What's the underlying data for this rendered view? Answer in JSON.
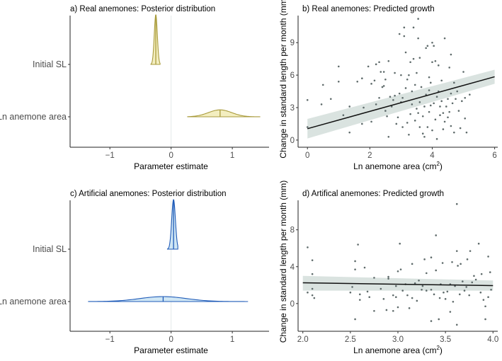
{
  "chart_data": [
    {
      "id": "a",
      "type": "density",
      "title": "a) Real anemones: Posterior distribution",
      "xlabel": "Parameter estimate",
      "xlim": [
        -1.65,
        1.6
      ],
      "xticks": [
        -1,
        0,
        1
      ],
      "xtick_labels": [
        "−1",
        "0",
        "1"
      ],
      "reference_line": 0,
      "colors": {
        "fill": "#f3eec0",
        "stroke": "#a99b3c"
      },
      "categories": [
        "Initial SL",
        "Ln anemone area"
      ],
      "series": [
        {
          "name": "Initial SL",
          "median": -0.25,
          "sd": 0.025,
          "range": [
            -0.33,
            -0.18
          ],
          "relative_height": 1.0
        },
        {
          "name": "Ln anemone area",
          "median": 0.8,
          "sd": 0.19,
          "range": [
            0.27,
            1.45
          ],
          "relative_height": 0.14
        }
      ]
    },
    {
      "id": "b",
      "type": "scatter",
      "title": "b) Real anemones: Predicted growth",
      "xlabel": "Ln anemone area (cm",
      "xlabel_sup": "2",
      "xlabel_end": ")",
      "ylabel": "Change in standard length per month (mm)",
      "xlim": [
        -0.3,
        6.1
      ],
      "ylim": [
        -0.4,
        11.5
      ],
      "xticks": [
        0,
        2,
        4,
        6
      ],
      "xtick_labels": [
        "0",
        "2",
        "4",
        "6"
      ],
      "yticks": [
        0,
        3,
        6,
        9
      ],
      "ytick_labels": [
        "0",
        "3",
        "6",
        "9"
      ],
      "colors": {
        "point": "#5f6b6b",
        "line": "#111111",
        "band": "#d3dedb"
      },
      "fit": {
        "x": [
          0,
          6
        ],
        "y": [
          1.05,
          5.85
        ],
        "lower": [
          0.15,
          5.2
        ],
        "upper": [
          1.95,
          6.5
        ]
      },
      "points": [
        [
          0,
          3.7
        ],
        [
          0,
          1.2
        ],
        [
          0.45,
          3.3
        ],
        [
          0.5,
          5.1
        ],
        [
          0.75,
          3.8
        ],
        [
          1,
          6.8
        ],
        [
          1,
          5.4
        ],
        [
          1.15,
          2.3
        ],
        [
          1.35,
          3.1
        ],
        [
          1.35,
          0.7
        ],
        [
          1.6,
          5.4
        ],
        [
          1.75,
          5.7
        ],
        [
          1.75,
          1.5
        ],
        [
          1.8,
          3
        ],
        [
          1.95,
          6.8
        ],
        [
          2.05,
          5.2
        ],
        [
          2.05,
          1.7
        ],
        [
          2.15,
          5.5
        ],
        [
          2.2,
          7
        ],
        [
          2.3,
          7.2
        ],
        [
          2.35,
          6.3
        ],
        [
          2.45,
          6.3
        ],
        [
          2.5,
          5.6
        ],
        [
          2.5,
          2.7
        ],
        [
          2.6,
          7.3
        ],
        [
          2.6,
          0.3
        ],
        [
          2.65,
          4
        ],
        [
          2.75,
          3.7
        ],
        [
          2.8,
          6.2
        ],
        [
          2.9,
          2.1
        ],
        [
          2.95,
          9.8
        ],
        [
          3,
          6
        ],
        [
          3.05,
          1.2
        ],
        [
          3.1,
          10.4
        ],
        [
          3.1,
          9.6
        ],
        [
          3.15,
          8.1
        ],
        [
          3.2,
          5.6
        ],
        [
          3.25,
          0.5
        ],
        [
          3.3,
          7.2
        ],
        [
          3.4,
          10.4
        ],
        [
          3.4,
          7.5
        ],
        [
          3.5,
          6.2
        ],
        [
          3.55,
          9.4
        ],
        [
          3.55,
          11.2
        ],
        [
          3.6,
          7.6
        ],
        [
          3.6,
          1.2
        ],
        [
          3.7,
          0.6
        ],
        [
          3.8,
          8.5
        ],
        [
          3.85,
          8.7
        ],
        [
          3.9,
          4.6
        ],
        [
          3.95,
          3.2
        ],
        [
          4,
          9
        ],
        [
          4,
          7.2
        ],
        [
          4.05,
          8.7
        ],
        [
          4.1,
          7.3
        ],
        [
          4.2,
          6.9
        ],
        [
          4.25,
          2.3
        ],
        [
          4.4,
          9.4
        ],
        [
          4.5,
          3.8
        ],
        [
          4.55,
          6.7
        ],
        [
          4.6,
          7.9
        ],
        [
          4.7,
          5.3
        ],
        [
          4.8,
          4.5
        ],
        [
          4.9,
          1.1
        ],
        [
          5,
          6.3
        ],
        [
          5.05,
          2
        ],
        [
          5.1,
          0.7
        ],
        [
          5.2,
          4.2
        ],
        [
          4.15,
          0.1
        ],
        [
          3.75,
          0.3
        ],
        [
          3.45,
          1.8
        ],
        [
          3.3,
          2.4
        ],
        [
          2.3,
          3.9
        ],
        [
          4.3,
          3.6
        ],
        [
          4.6,
          1.3
        ],
        [
          3.9,
          2.6
        ],
        [
          3.6,
          3.5
        ],
        [
          4.35,
          1
        ],
        [
          2.85,
          1.5
        ],
        [
          3.15,
          4.8
        ],
        [
          2.4,
          4.9
        ],
        [
          2.7,
          3.1
        ],
        [
          2.95,
          4.3
        ],
        [
          3.05,
          3.9
        ],
        [
          3.35,
          3.3
        ],
        [
          3.5,
          2.9
        ],
        [
          3.65,
          4.9
        ],
        [
          3.7,
          2.2
        ],
        [
          3.8,
          4.2
        ],
        [
          3.95,
          5.3
        ],
        [
          4.05,
          3.4
        ],
        [
          4.1,
          1.9
        ],
        [
          4.2,
          4.5
        ],
        [
          4.3,
          5.5
        ],
        [
          4.45,
          3.1
        ],
        [
          4.5,
          2.1
        ],
        [
          4.6,
          4.3
        ],
        [
          4.7,
          0.7
        ],
        [
          4.75,
          3.8
        ],
        [
          4.85,
          2.7
        ],
        [
          4.95,
          3.6
        ],
        [
          5.05,
          3.9
        ],
        [
          3.25,
          6
        ],
        [
          3.45,
          5.1
        ],
        [
          3.55,
          2.5
        ],
        [
          3.75,
          3.1
        ],
        [
          3.85,
          1.2
        ],
        [
          4.0,
          0.9
        ],
        [
          4.25,
          3.1
        ],
        [
          4.4,
          1.7
        ],
        [
          4.55,
          2.6
        ],
        [
          2.55,
          2.2
        ],
        [
          2.8,
          4.1
        ],
        [
          3.0,
          3.5
        ],
        [
          3.2,
          1.6
        ],
        [
          3.35,
          4.5
        ],
        [
          3.9,
          5.8
        ],
        [
          4.15,
          4.0
        ],
        [
          4.35,
          2.5
        ],
        [
          4.65,
          3.4
        ],
        [
          2.2,
          3.3
        ],
        [
          2.45,
          5.0
        ]
      ]
    },
    {
      "id": "c",
      "type": "density",
      "title": "c) Artificial anemones: Posterior distribution",
      "xlabel": "Parameter estimate",
      "xlim": [
        -1.65,
        1.6
      ],
      "xticks": [
        -1,
        0,
        1
      ],
      "xtick_labels": [
        "−1",
        "0",
        "1"
      ],
      "reference_line": 0,
      "colors": {
        "fill": "#cfe6f4",
        "stroke": "#1f5bb8"
      },
      "categories": [
        "Initial SL",
        "Ln anemone area"
      ],
      "series": [
        {
          "name": "Initial SL",
          "median": 0.04,
          "sd": 0.03,
          "range": [
            -0.06,
            0.11
          ],
          "relative_height": 1.0
        },
        {
          "name": "Ln anemone area",
          "median": -0.13,
          "sd": 0.38,
          "range": [
            -1.35,
            1.25
          ],
          "relative_height": 0.1
        }
      ]
    },
    {
      "id": "d",
      "type": "scatter",
      "title": "d) Artifical anemones: Predicted growth",
      "xlabel": "Ln anemone area (cm",
      "xlabel_sup": "2",
      "xlabel_end": ")",
      "ylabel": "Change in standard length per month (mm)",
      "xlim": [
        1.95,
        4.05
      ],
      "ylim": [
        -2.7,
        11.2
      ],
      "xticks": [
        2.0,
        2.5,
        3.0,
        3.5,
        4.0
      ],
      "xtick_labels": [
        "2.0",
        "2.5",
        "3.0",
        "3.5",
        "4.0"
      ],
      "yticks": [
        0,
        4,
        8
      ],
      "ytick_labels": [
        "0",
        "4",
        "8"
      ],
      "colors": {
        "point": "#5f6b6b",
        "line": "#111111",
        "band": "#d3dedb"
      },
      "fit": {
        "x": [
          2,
          4
        ],
        "y": [
          2.25,
          1.95
        ],
        "lower": [
          1.4,
          1.4
        ],
        "upper": [
          3.0,
          2.5
        ]
      },
      "points": [
        [
          2.05,
          6.1
        ],
        [
          2.05,
          1.2
        ],
        [
          2.1,
          4.7
        ],
        [
          2.1,
          3.2
        ],
        [
          2.1,
          1.6
        ],
        [
          2.1,
          0.9
        ],
        [
          2.12,
          0.6
        ],
        [
          2.5,
          1.2
        ],
        [
          2.52,
          1.8
        ],
        [
          2.55,
          4.6
        ],
        [
          2.55,
          3.7
        ],
        [
          2.55,
          -1.7
        ],
        [
          2.58,
          6.4
        ],
        [
          2.6,
          1
        ],
        [
          2.6,
          0.4
        ],
        [
          2.65,
          3.9
        ],
        [
          2.7,
          0.7
        ],
        [
          2.75,
          -0.8
        ],
        [
          2.75,
          2.8
        ],
        [
          2.85,
          0.5
        ],
        [
          2.88,
          -0.7
        ],
        [
          2.9,
          2.7
        ],
        [
          2.95,
          -0.8
        ],
        [
          2.98,
          0.7
        ],
        [
          3,
          3.5
        ],
        [
          3,
          -0.4
        ],
        [
          3.02,
          6.5
        ],
        [
          3.03,
          3.7
        ],
        [
          3.05,
          1.4
        ],
        [
          3.12,
          -0.5
        ],
        [
          3.15,
          4.3
        ],
        [
          3.18,
          2.2
        ],
        [
          3.2,
          0.3
        ],
        [
          3.25,
          1.5
        ],
        [
          3.28,
          4.8
        ],
        [
          3.3,
          3.3
        ],
        [
          3.35,
          5
        ],
        [
          3.35,
          -1.9
        ],
        [
          3.4,
          7.4
        ],
        [
          3.4,
          3.6
        ],
        [
          3.43,
          -1.7
        ],
        [
          3.45,
          2.1
        ],
        [
          3.47,
          4.4
        ],
        [
          3.5,
          0.5
        ],
        [
          3.52,
          1.3
        ],
        [
          3.55,
          -0.9
        ],
        [
          3.57,
          4.5
        ],
        [
          3.62,
          10.8
        ],
        [
          3.62,
          5.7
        ],
        [
          3.62,
          -2.3
        ],
        [
          3.63,
          4.1
        ],
        [
          3.66,
          4.3
        ],
        [
          3.7,
          1.4
        ],
        [
          3.73,
          4.8
        ],
        [
          3.76,
          5.7
        ],
        [
          3.78,
          2.3
        ],
        [
          3.8,
          3
        ],
        [
          3.85,
          6.5
        ],
        [
          3.88,
          3.2
        ],
        [
          3.92,
          -0.3
        ],
        [
          3.92,
          -1.7
        ],
        [
          3.95,
          5.1
        ],
        [
          3.97,
          3.4
        ],
        [
          3.98,
          1.5
        ],
        [
          3.95,
          0.7
        ],
        [
          3.65,
          1
        ],
        [
          3.55,
          2.1
        ],
        [
          3.15,
          0.6
        ],
        [
          3.3,
          1.4
        ],
        [
          2.98,
          1.9
        ],
        [
          2.9,
          2.9
        ],
        [
          3.08,
          2.1
        ],
        [
          3.22,
          2.5
        ],
        [
          3.38,
          1.0
        ],
        [
          3.48,
          1.2
        ],
        [
          3.58,
          0.2
        ],
        [
          3.68,
          2.4
        ],
        [
          3.72,
          1.8
        ],
        [
          3.82,
          2.6
        ],
        [
          3.87,
          1.2
        ],
        [
          3.9,
          0.4
        ],
        [
          2.68,
          1.3
        ],
        [
          2.82,
          1.6
        ],
        [
          3.1,
          0.9
        ],
        [
          3.26,
          1.9
        ],
        [
          3.44,
          0.6
        ],
        [
          3.6,
          1.9
        ],
        [
          3.75,
          0.9
        ],
        [
          2.95,
          0.9
        ],
        [
          3.35,
          1.5
        ]
      ]
    }
  ]
}
